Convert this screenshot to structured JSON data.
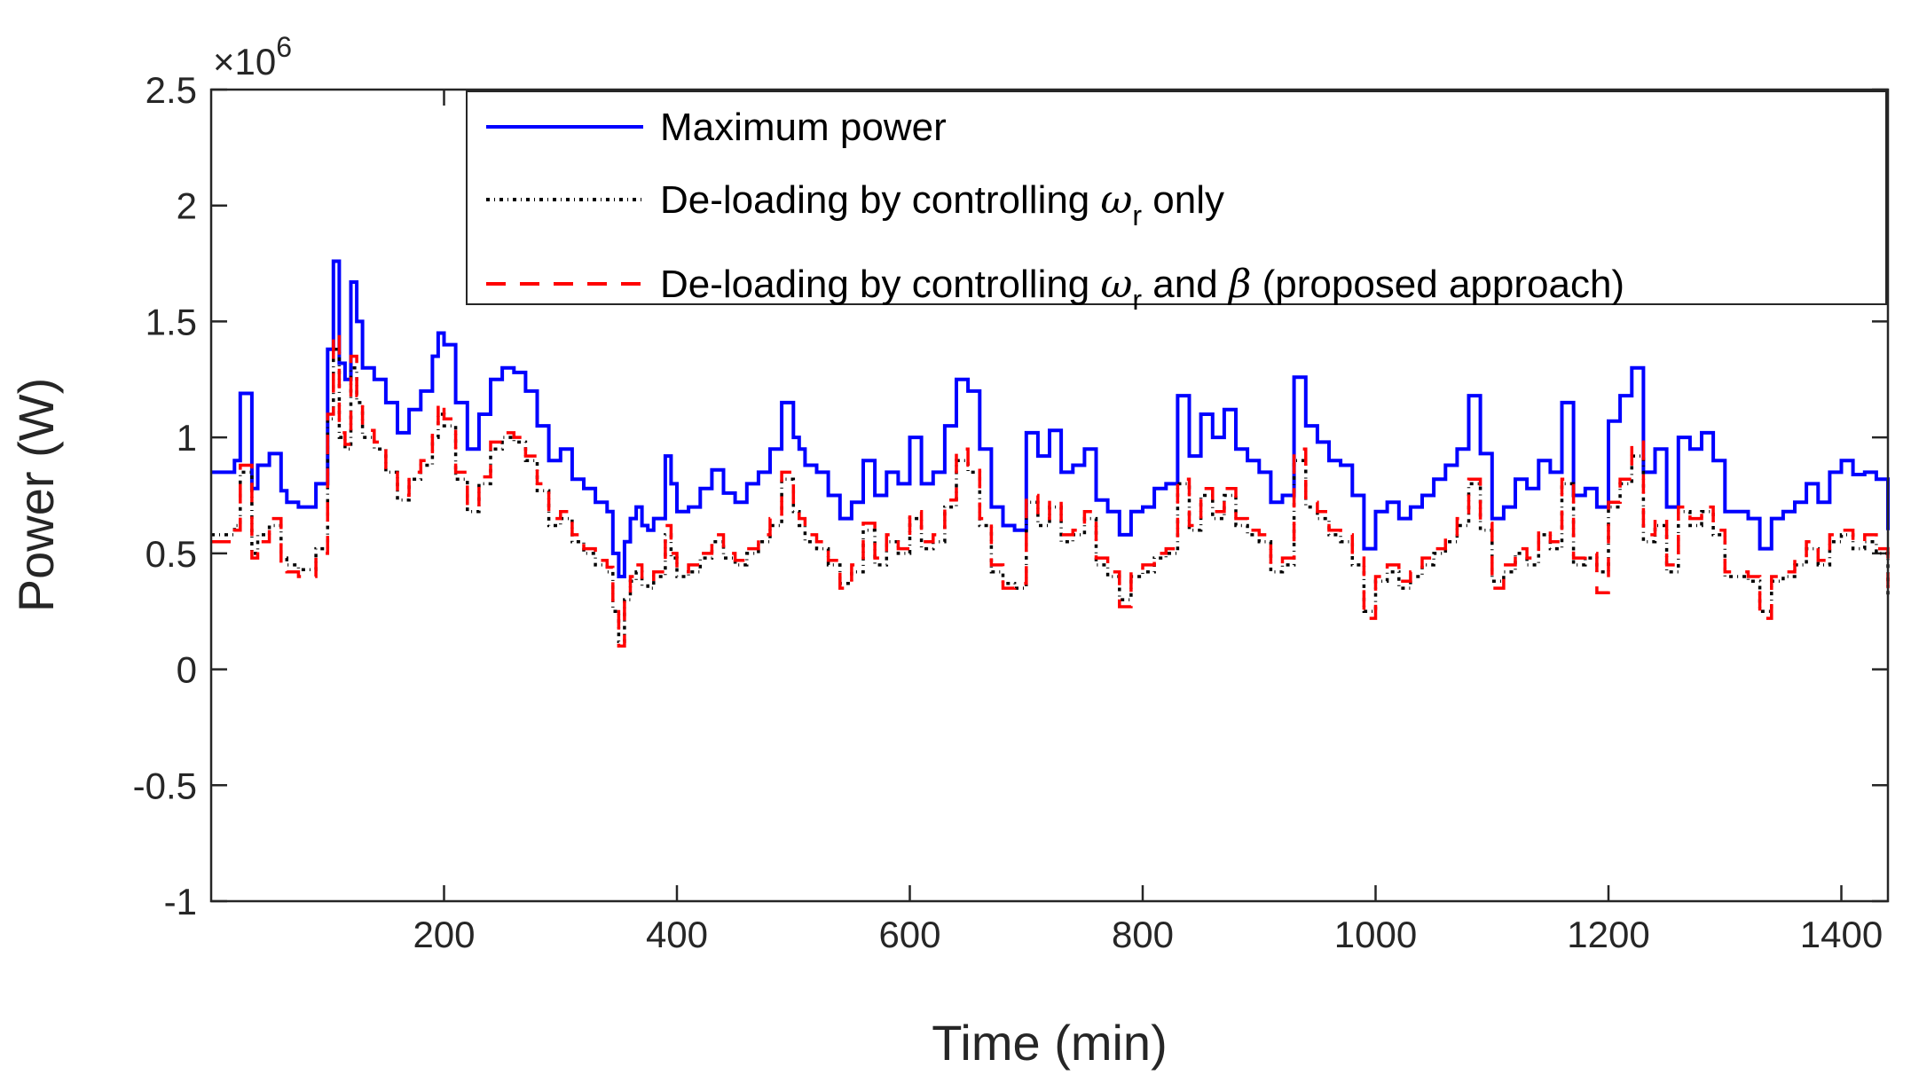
{
  "chart_data": {
    "type": "line",
    "title": "",
    "xlabel": "Time (min)",
    "ylabel": "Power (W)",
    "y_exponent_label": "×10",
    "y_exponent_power": "6",
    "y_scale": 1000000,
    "xlim": [
      0,
      1440
    ],
    "ylim": [
      -1,
      2.5
    ],
    "xticks": [
      200,
      400,
      600,
      800,
      1000,
      1200,
      1400
    ],
    "xtick_labels": [
      "200",
      "400",
      "600",
      "800",
      "1000",
      "1200",
      "1400"
    ],
    "yticks": [
      -1,
      -0.5,
      0,
      0.5,
      1,
      1.5,
      2,
      2.5
    ],
    "ytick_labels": [
      "-1",
      "-0.5",
      "0",
      "0.5",
      "1",
      "1.5",
      "2",
      "2.5"
    ],
    "grid": false,
    "legend_position": "top-right",
    "legend": {
      "max_label": "Maximum power",
      "wr_prefix": "De-loading by controlling ",
      "omega": "ω",
      "sub_r": "r",
      "wr_suffix": " only",
      "both_prefix": "De-loading by controlling ",
      "both_mid": " and ",
      "beta": "β",
      "both_suffix": " (proposed approach)"
    },
    "series": [
      {
        "name": "Maximum power",
        "color": "#0000ff",
        "style": "solid",
        "x": [
          0,
          20,
          25,
          35,
          40,
          50,
          60,
          65,
          75,
          90,
          100,
          105,
          110,
          115,
          120,
          125,
          130,
          140,
          150,
          160,
          170,
          180,
          190,
          195,
          200,
          210,
          220,
          230,
          240,
          250,
          260,
          270,
          280,
          290,
          300,
          310,
          320,
          330,
          340,
          345,
          350,
          355,
          360,
          365,
          370,
          375,
          380,
          390,
          395,
          400,
          410,
          420,
          430,
          440,
          450,
          460,
          470,
          480,
          490,
          500,
          505,
          510,
          520,
          530,
          540,
          550,
          560,
          570,
          580,
          590,
          600,
          610,
          620,
          630,
          640,
          650,
          660,
          670,
          680,
          690,
          700,
          710,
          720,
          730,
          740,
          750,
          760,
          770,
          780,
          790,
          800,
          810,
          820,
          830,
          840,
          850,
          860,
          870,
          880,
          890,
          900,
          910,
          920,
          930,
          940,
          950,
          960,
          970,
          980,
          990,
          1000,
          1010,
          1020,
          1030,
          1040,
          1050,
          1060,
          1070,
          1080,
          1090,
          1100,
          1110,
          1120,
          1130,
          1140,
          1150,
          1160,
          1170,
          1180,
          1190,
          1200,
          1210,
          1220,
          1230,
          1240,
          1250,
          1260,
          1270,
          1280,
          1290,
          1300,
          1310,
          1320,
          1330,
          1340,
          1350,
          1360,
          1370,
          1380,
          1390,
          1400,
          1410,
          1420,
          1430,
          1440
        ],
        "values": [
          0.85,
          0.9,
          1.19,
          0.78,
          0.88,
          0.93,
          0.77,
          0.72,
          0.7,
          0.8,
          1.38,
          1.76,
          1.32,
          1.25,
          1.67,
          1.5,
          1.3,
          1.25,
          1.15,
          1.02,
          1.12,
          1.2,
          1.35,
          1.45,
          1.4,
          1.15,
          0.95,
          1.1,
          1.25,
          1.3,
          1.28,
          1.2,
          1.05,
          0.9,
          0.95,
          0.82,
          0.78,
          0.72,
          0.68,
          0.5,
          0.4,
          0.55,
          0.65,
          0.7,
          0.62,
          0.6,
          0.65,
          0.92,
          0.8,
          0.68,
          0.7,
          0.78,
          0.86,
          0.76,
          0.72,
          0.8,
          0.85,
          0.95,
          1.15,
          1.0,
          0.95,
          0.88,
          0.85,
          0.75,
          0.65,
          0.72,
          0.9,
          0.75,
          0.85,
          0.8,
          1.0,
          0.8,
          0.85,
          1.05,
          1.25,
          1.2,
          0.95,
          0.7,
          0.62,
          0.6,
          1.02,
          0.92,
          1.03,
          0.85,
          0.88,
          0.95,
          0.73,
          0.68,
          0.58,
          0.68,
          0.7,
          0.78,
          0.8,
          1.18,
          0.92,
          1.1,
          1.0,
          1.12,
          0.95,
          0.9,
          0.85,
          0.72,
          0.75,
          1.26,
          1.05,
          0.98,
          0.9,
          0.88,
          0.75,
          0.52,
          0.68,
          0.72,
          0.65,
          0.7,
          0.75,
          0.82,
          0.88,
          0.95,
          1.18,
          0.93,
          0.65,
          0.7,
          0.82,
          0.78,
          0.9,
          0.85,
          1.15,
          0.75,
          0.78,
          0.7,
          1.07,
          1.18,
          1.3,
          0.85,
          0.95,
          0.7,
          1.0,
          0.95,
          1.02,
          0.9,
          0.68,
          0.68,
          0.65,
          0.52,
          0.65,
          0.68,
          0.72,
          0.8,
          0.72,
          0.85,
          0.9,
          0.84,
          0.85,
          0.82,
          0.6
        ]
      },
      {
        "name": "De-loading by controlling ωr only",
        "color": "#000000",
        "style": "dashdot",
        "x": [
          0,
          20,
          25,
          35,
          40,
          50,
          60,
          65,
          75,
          90,
          100,
          105,
          110,
          115,
          120,
          125,
          130,
          140,
          150,
          160,
          170,
          180,
          190,
          195,
          200,
          210,
          220,
          230,
          240,
          250,
          260,
          270,
          280,
          290,
          300,
          310,
          320,
          330,
          340,
          345,
          350,
          355,
          360,
          365,
          370,
          375,
          380,
          390,
          395,
          400,
          410,
          420,
          430,
          440,
          450,
          460,
          470,
          480,
          490,
          500,
          505,
          510,
          520,
          530,
          540,
          550,
          560,
          570,
          580,
          590,
          600,
          610,
          620,
          630,
          640,
          650,
          660,
          670,
          680,
          690,
          700,
          710,
          720,
          730,
          740,
          750,
          760,
          770,
          780,
          790,
          800,
          810,
          820,
          830,
          840,
          850,
          860,
          870,
          880,
          890,
          900,
          910,
          920,
          930,
          940,
          950,
          960,
          970,
          980,
          990,
          1000,
          1010,
          1020,
          1030,
          1040,
          1050,
          1060,
          1070,
          1080,
          1090,
          1100,
          1110,
          1120,
          1130,
          1140,
          1150,
          1160,
          1170,
          1180,
          1190,
          1200,
          1210,
          1220,
          1230,
          1240,
          1250,
          1260,
          1270,
          1280,
          1290,
          1300,
          1310,
          1320,
          1330,
          1340,
          1350,
          1360,
          1370,
          1380,
          1390,
          1400,
          1410,
          1420,
          1430,
          1440
        ],
        "values": [
          0.58,
          0.62,
          0.85,
          0.5,
          0.58,
          0.62,
          0.48,
          0.45,
          0.43,
          0.52,
          1.08,
          1.38,
          1.0,
          0.95,
          1.3,
          1.15,
          1.0,
          0.95,
          0.85,
          0.73,
          0.82,
          0.88,
          1.0,
          1.1,
          1.05,
          0.82,
          0.68,
          0.8,
          0.95,
          1.0,
          0.98,
          0.9,
          0.77,
          0.62,
          0.65,
          0.55,
          0.5,
          0.45,
          0.42,
          0.25,
          0.12,
          0.3,
          0.38,
          0.42,
          0.36,
          0.35,
          0.4,
          0.58,
          0.48,
          0.4,
          0.42,
          0.48,
          0.55,
          0.48,
          0.45,
          0.5,
          0.55,
          0.62,
          0.82,
          0.68,
          0.62,
          0.55,
          0.52,
          0.45,
          0.37,
          0.42,
          0.6,
          0.45,
          0.55,
          0.5,
          0.65,
          0.52,
          0.55,
          0.7,
          0.9,
          0.85,
          0.62,
          0.42,
          0.37,
          0.35,
          0.72,
          0.62,
          0.7,
          0.55,
          0.58,
          0.65,
          0.45,
          0.4,
          0.3,
          0.4,
          0.42,
          0.48,
          0.5,
          0.8,
          0.6,
          0.75,
          0.65,
          0.75,
          0.62,
          0.58,
          0.55,
          0.42,
          0.45,
          0.9,
          0.7,
          0.65,
          0.58,
          0.55,
          0.45,
          0.25,
          0.38,
          0.42,
          0.35,
          0.4,
          0.45,
          0.5,
          0.55,
          0.62,
          0.8,
          0.6,
          0.38,
          0.42,
          0.5,
          0.45,
          0.58,
          0.52,
          0.8,
          0.45,
          0.48,
          0.42,
          0.7,
          0.8,
          0.92,
          0.55,
          0.62,
          0.42,
          0.68,
          0.62,
          0.68,
          0.58,
          0.4,
          0.4,
          0.38,
          0.25,
          0.38,
          0.4,
          0.45,
          0.52,
          0.45,
          0.55,
          0.58,
          0.52,
          0.55,
          0.5,
          0.32
        ]
      },
      {
        "name": "De-loading by controlling ωr and β (proposed approach)",
        "color": "#ff0000",
        "style": "dashed",
        "x": [
          0,
          20,
          25,
          35,
          40,
          50,
          60,
          65,
          75,
          90,
          100,
          105,
          110,
          115,
          120,
          125,
          130,
          140,
          150,
          160,
          170,
          180,
          190,
          195,
          200,
          210,
          220,
          230,
          240,
          250,
          260,
          270,
          280,
          290,
          300,
          310,
          320,
          330,
          340,
          345,
          350,
          355,
          360,
          365,
          370,
          375,
          380,
          390,
          395,
          400,
          410,
          420,
          430,
          440,
          450,
          460,
          470,
          480,
          490,
          500,
          505,
          510,
          520,
          530,
          540,
          550,
          560,
          570,
          580,
          590,
          600,
          610,
          620,
          630,
          640,
          650,
          660,
          670,
          680,
          690,
          700,
          710,
          720,
          730,
          740,
          750,
          760,
          770,
          780,
          790,
          800,
          810,
          820,
          830,
          840,
          850,
          860,
          870,
          880,
          890,
          900,
          910,
          920,
          930,
          940,
          950,
          960,
          970,
          980,
          990,
          1000,
          1010,
          1020,
          1030,
          1040,
          1050,
          1060,
          1070,
          1080,
          1090,
          1100,
          1110,
          1120,
          1130,
          1140,
          1150,
          1160,
          1170,
          1180,
          1190,
          1200,
          1210,
          1220,
          1230,
          1240,
          1250,
          1260,
          1270,
          1280,
          1290,
          1300,
          1310,
          1320,
          1330,
          1340,
          1350,
          1360,
          1370,
          1380,
          1390,
          1400,
          1410,
          1420,
          1430,
          1440
        ],
        "values": [
          0.55,
          0.6,
          0.88,
          0.48,
          0.55,
          0.65,
          0.45,
          0.42,
          0.4,
          0.5,
          1.1,
          1.45,
          1.02,
          0.97,
          1.35,
          1.18,
          1.03,
          0.98,
          0.87,
          0.75,
          0.85,
          0.9,
          1.03,
          1.15,
          1.08,
          0.85,
          0.7,
          0.83,
          0.98,
          1.02,
          1.0,
          0.92,
          0.8,
          0.65,
          0.68,
          0.58,
          0.52,
          0.47,
          0.44,
          0.28,
          0.1,
          0.33,
          0.4,
          0.45,
          0.38,
          0.38,
          0.42,
          0.62,
          0.5,
          0.42,
          0.45,
          0.5,
          0.58,
          0.5,
          0.47,
          0.52,
          0.58,
          0.65,
          0.85,
          0.7,
          0.65,
          0.58,
          0.55,
          0.47,
          0.35,
          0.45,
          0.63,
          0.48,
          0.58,
          0.52,
          0.68,
          0.55,
          0.58,
          0.73,
          0.95,
          0.88,
          0.65,
          0.45,
          0.35,
          0.37,
          0.75,
          0.65,
          0.73,
          0.58,
          0.6,
          0.68,
          0.48,
          0.42,
          0.27,
          0.42,
          0.45,
          0.5,
          0.52,
          0.82,
          0.62,
          0.78,
          0.68,
          0.78,
          0.65,
          0.6,
          0.58,
          0.45,
          0.48,
          0.95,
          0.72,
          0.68,
          0.6,
          0.58,
          0.48,
          0.22,
          0.4,
          0.45,
          0.38,
          0.42,
          0.48,
          0.52,
          0.58,
          0.65,
          0.82,
          0.63,
          0.35,
          0.45,
          0.52,
          0.48,
          0.6,
          0.55,
          0.82,
          0.48,
          0.5,
          0.33,
          0.72,
          0.82,
          0.98,
          0.58,
          0.65,
          0.45,
          0.7,
          0.65,
          0.7,
          0.6,
          0.42,
          0.42,
          0.4,
          0.22,
          0.4,
          0.42,
          0.48,
          0.55,
          0.47,
          0.58,
          0.6,
          0.55,
          0.58,
          0.52,
          0.35
        ]
      }
    ]
  }
}
